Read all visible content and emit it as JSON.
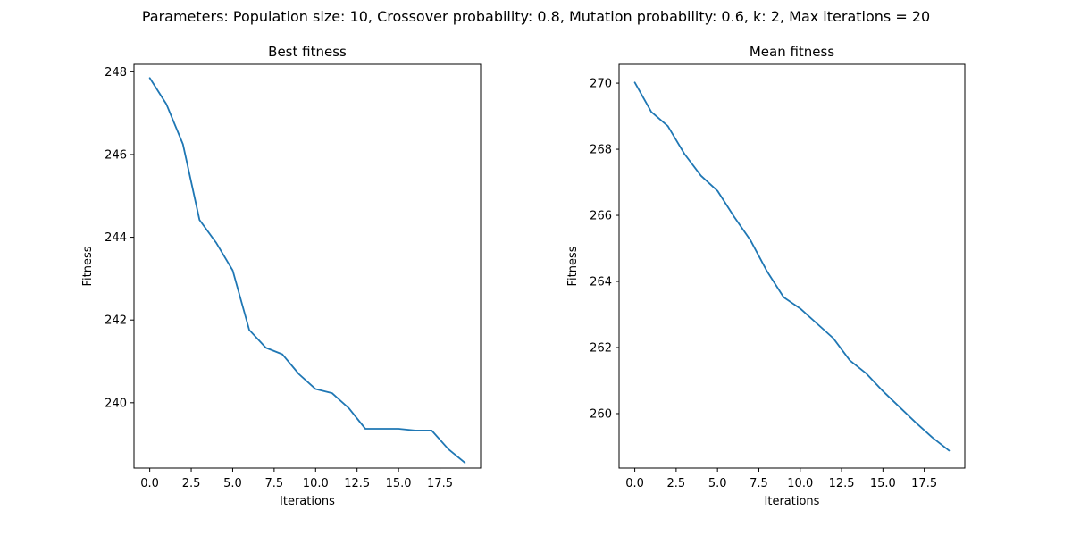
{
  "figure": {
    "suptitle": "Parameters: Population size: 10, Crossover probability: 0.8, Mutation probability: 0.6, k: 2, Max iterations = 20"
  },
  "colors": {
    "line": "#1f77b4",
    "background": "#ffffff",
    "axes": "#000000"
  },
  "chart_data": [
    {
      "type": "line",
      "title": "Best fitness",
      "xlabel": "Iterations",
      "ylabel": "Fitness",
      "xlim": [
        -0.95,
        19.95
      ],
      "ylim": [
        238.42,
        248.18
      ],
      "xticks": [
        0.0,
        2.5,
        5.0,
        7.5,
        10.0,
        12.5,
        15.0,
        17.5
      ],
      "xtick_labels": [
        "0.0",
        "2.5",
        "5.0",
        "7.5",
        "10.0",
        "12.5",
        "15.0",
        "17.5"
      ],
      "yticks": [
        240,
        242,
        244,
        246,
        248
      ],
      "ytick_labels": [
        "240",
        "242",
        "244",
        "246",
        "248"
      ],
      "grid": false,
      "legend": false,
      "series": [
        {
          "x": [
            0,
            1,
            2,
            3,
            4,
            5,
            6,
            7,
            8,
            9,
            10,
            11,
            12,
            13,
            14,
            15,
            16,
            17,
            18,
            19
          ],
          "y": [
            247.85,
            247.22,
            246.25,
            244.42,
            243.87,
            243.2,
            241.76,
            241.33,
            241.17,
            240.69,
            240.33,
            240.23,
            239.87,
            239.37,
            239.37,
            239.37,
            239.33,
            239.33,
            238.88,
            238.55
          ]
        }
      ]
    },
    {
      "type": "line",
      "title": "Mean fitness",
      "xlabel": "Iterations",
      "ylabel": "Fitness",
      "xlim": [
        -0.95,
        19.95
      ],
      "ylim": [
        258.35,
        270.57
      ],
      "xticks": [
        0.0,
        2.5,
        5.0,
        7.5,
        10.0,
        12.5,
        15.0,
        17.5
      ],
      "xtick_labels": [
        "0.0",
        "2.5",
        "5.0",
        "7.5",
        "10.0",
        "12.5",
        "15.0",
        "17.5"
      ],
      "yticks": [
        260,
        262,
        264,
        266,
        268,
        270
      ],
      "ytick_labels": [
        "260",
        "262",
        "264",
        "266",
        "268",
        "270"
      ],
      "grid": false,
      "legend": false,
      "series": [
        {
          "x": [
            0,
            1,
            2,
            3,
            4,
            5,
            6,
            7,
            8,
            9,
            10,
            11,
            12,
            13,
            14,
            15,
            16,
            17,
            18,
            19
          ],
          "y": [
            270.02,
            269.13,
            268.7,
            267.86,
            267.2,
            266.74,
            265.96,
            265.24,
            264.3,
            263.52,
            263.18,
            262.73,
            262.28,
            261.61,
            261.21,
            260.68,
            260.2,
            259.72,
            259.27,
            258.88
          ]
        }
      ]
    }
  ]
}
